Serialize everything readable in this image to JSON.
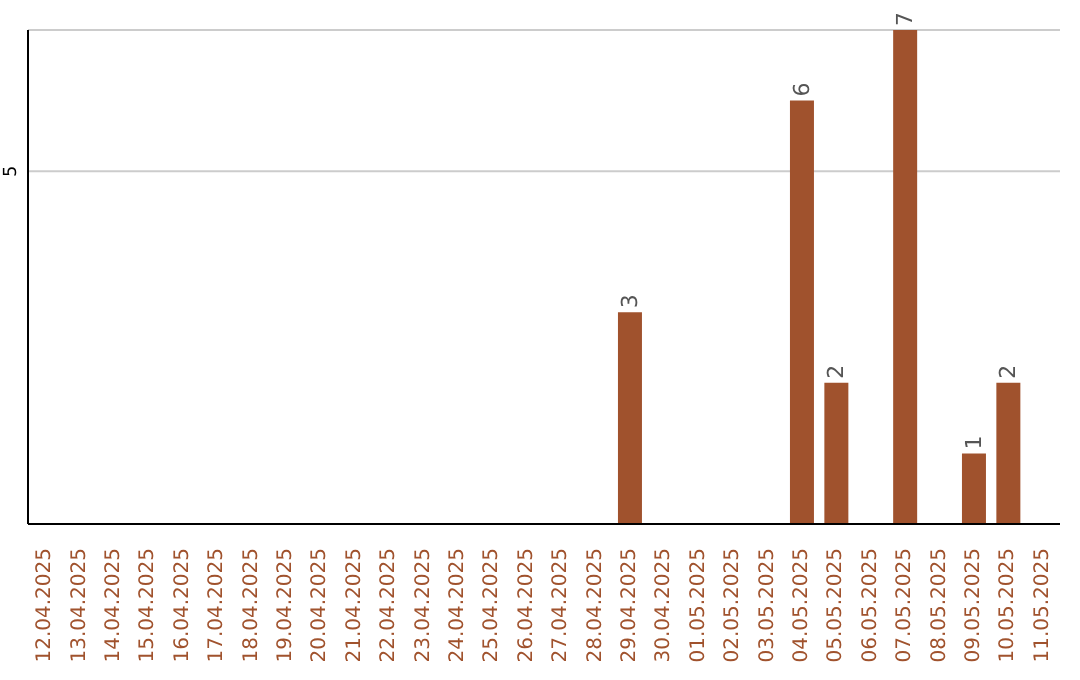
{
  "chart_data": {
    "type": "bar",
    "categories": [
      "12.04.2025",
      "13.04.2025",
      "14.04.2025",
      "15.04.2025",
      "16.04.2025",
      "17.04.2025",
      "18.04.2025",
      "19.04.2025",
      "20.04.2025",
      "21.04.2025",
      "22.04.2025",
      "23.04.2025",
      "24.04.2025",
      "25.04.2025",
      "26.04.2025",
      "27.04.2025",
      "28.04.2025",
      "29.04.2025",
      "30.04.2025",
      "01.05.2025",
      "02.05.2025",
      "03.05.2025",
      "04.05.2025",
      "05.05.2025",
      "06.05.2025",
      "07.05.2025",
      "08.05.2025",
      "09.05.2025",
      "10.05.2025",
      "11.05.2025"
    ],
    "values": [
      null,
      null,
      null,
      null,
      null,
      null,
      null,
      null,
      null,
      null,
      null,
      null,
      null,
      null,
      null,
      null,
      null,
      3,
      null,
      null,
      null,
      null,
      6,
      2,
      null,
      7,
      null,
      1,
      2,
      null
    ],
    "color": "#a0522d",
    "ylim": [
      0,
      7
    ],
    "yticks": [
      5
    ],
    "grid": "y",
    "data_labels": true
  }
}
